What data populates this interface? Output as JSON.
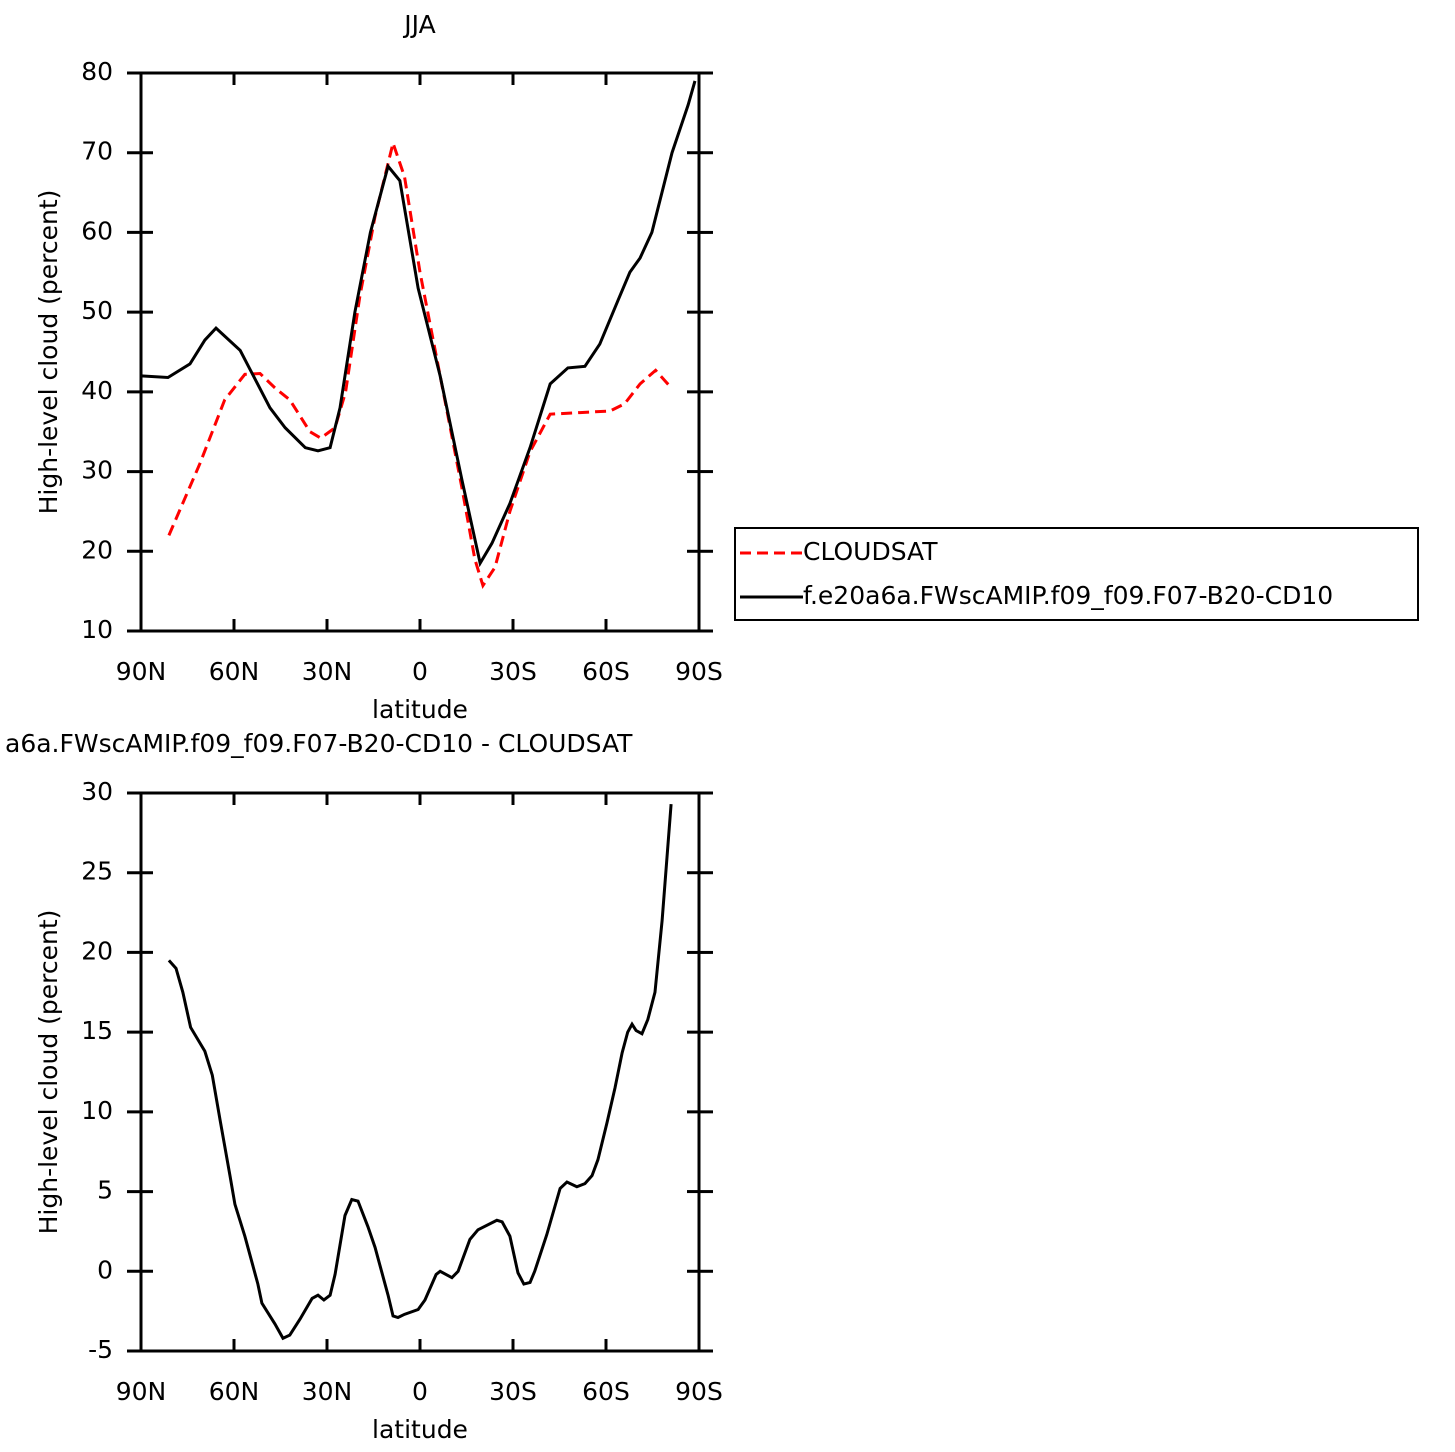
{
  "chart_data": [
    {
      "type": "line",
      "title": "JJA",
      "xlabel": "latitude",
      "ylabel": "High-level cloud (percent)",
      "xlim": [
        90,
        -90
      ],
      "ylim": [
        10,
        80
      ],
      "xticks": [
        {
          "value": 90,
          "label": "90N"
        },
        {
          "value": 60,
          "label": "60N"
        },
        {
          "value": 30,
          "label": "30N"
        },
        0,
        {
          "value": -30,
          "label": "30S"
        },
        {
          "value": -60,
          "label": "60S"
        },
        {
          "value": -90,
          "label": "90S"
        }
      ],
      "yticks": [
        10,
        20,
        30,
        40,
        50,
        60,
        70,
        80
      ],
      "legend": "right",
      "series": [
        {
          "name": "CLOUDSAT",
          "color": "#ff0000",
          "dashed": true,
          "x": [
            81,
            71,
            63,
            56.5,
            51.6,
            46.8,
            42,
            35.5,
            32,
            27.4,
            24,
            19.4,
            14.5,
            8.7,
            5,
            0,
            -6.5,
            -13.5,
            -17.7,
            -20.3,
            -24.2,
            -29,
            -35.5,
            -42,
            -51.6,
            -61.3,
            -66,
            -71,
            -76,
            -81.3
          ],
          "values": [
            22,
            31,
            39,
            42.2,
            42.3,
            40.5,
            39,
            35,
            34.2,
            35.5,
            40,
            52,
            62,
            71.2,
            67,
            55,
            42,
            28,
            19,
            15.7,
            18,
            25,
            32.5,
            37.2,
            37.4,
            37.6,
            38.5,
            41,
            42.7,
            40.4
          ]
        },
        {
          "name": "f.e20a6a.FWscAMIP.f09_f09.F07-B20-CD10",
          "color": "#000000",
          "dashed": false,
          "x": [
            90,
            81.3,
            74.2,
            69.4,
            65.8,
            58,
            48.4,
            43.5,
            37,
            32.9,
            29,
            25.8,
            21,
            16,
            10.3,
            6.5,
            0.6,
            -6.5,
            -13.5,
            -19.4,
            -23.2,
            -29,
            -35.5,
            -42,
            -47.7,
            -53.2,
            -58,
            -63.9,
            -67.7,
            -71,
            -74.8,
            -81.3,
            -86.5,
            -88.7
          ],
          "values": [
            42,
            41.8,
            43.5,
            46.5,
            48,
            45.2,
            38,
            35.5,
            33,
            32.6,
            33,
            38,
            50,
            60,
            68.3,
            66.5,
            53,
            42,
            29,
            18.5,
            21,
            26,
            33,
            41,
            43,
            43.2,
            46,
            51.5,
            55,
            56.8,
            60,
            70,
            76,
            79
          ]
        }
      ]
    },
    {
      "type": "line",
      "title": "a6a.FWscAMIP.f09_f09.F07-B20-CD10 - CLOUDSAT",
      "xlabel": "latitude",
      "ylabel": "High-level cloud (percent)",
      "xlim": [
        90,
        -90
      ],
      "ylim": [
        -5,
        30
      ],
      "xticks": [
        {
          "value": 90,
          "label": "90N"
        },
        {
          "value": 60,
          "label": "60N"
        },
        {
          "value": 30,
          "label": "30N"
        },
        0,
        {
          "value": -30,
          "label": "30S"
        },
        {
          "value": -60,
          "label": "60S"
        },
        {
          "value": -90,
          "label": "90S"
        }
      ],
      "yticks": [
        -5,
        0,
        5,
        10,
        15,
        20,
        25,
        30
      ],
      "series": [
        {
          "color": "#000000",
          "dashed": false,
          "x": [
            81,
            78.7,
            76.5,
            74,
            69.4,
            67,
            64.5,
            61.3,
            59.7,
            56.5,
            52.3,
            51,
            46.8,
            44.2,
            42,
            38.7,
            34.8,
            32.9,
            31,
            29,
            27.4,
            24.2,
            22,
            20,
            16.8,
            14.5,
            10.3,
            8.7,
            7.1,
            5,
            0.6,
            -1.6,
            -5.2,
            -6.5,
            -10.3,
            -12.3,
            -16.1,
            -18.7,
            -24.8,
            -26.5,
            -29,
            -31.6,
            -33.5,
            -35.5,
            -37,
            -40.9,
            -45.2,
            -47.4,
            -50.6,
            -53.2,
            -55.5,
            -57.4,
            -60.3,
            -62.9,
            -65.2,
            -67,
            -68.4,
            -69.7,
            -71.6,
            -73.5,
            -75.8,
            -78.1,
            -81
          ],
          "values": [
            19.5,
            19,
            17.5,
            15.3,
            13.8,
            12.3,
            9.5,
            6,
            4.2,
            2.2,
            -0.8,
            -2,
            -3.3,
            -4.2,
            -4,
            -3,
            -1.7,
            -1.5,
            -1.8,
            -1.5,
            -0.2,
            3.5,
            4.5,
            4.4,
            2.8,
            1.5,
            -1.5,
            -2.8,
            -2.9,
            -2.7,
            -2.4,
            -1.8,
            -0.2,
            0,
            -0.4,
            0,
            2,
            2.6,
            3.2,
            3.1,
            2.2,
            -0.1,
            -0.8,
            -0.7,
            0,
            2.3,
            5.2,
            5.6,
            5.3,
            5.5,
            6,
            7,
            9.3,
            11.5,
            13.7,
            15,
            15.5,
            15.1,
            14.9,
            15.8,
            17.5,
            22,
            29.3
          ]
        }
      ]
    }
  ]
}
